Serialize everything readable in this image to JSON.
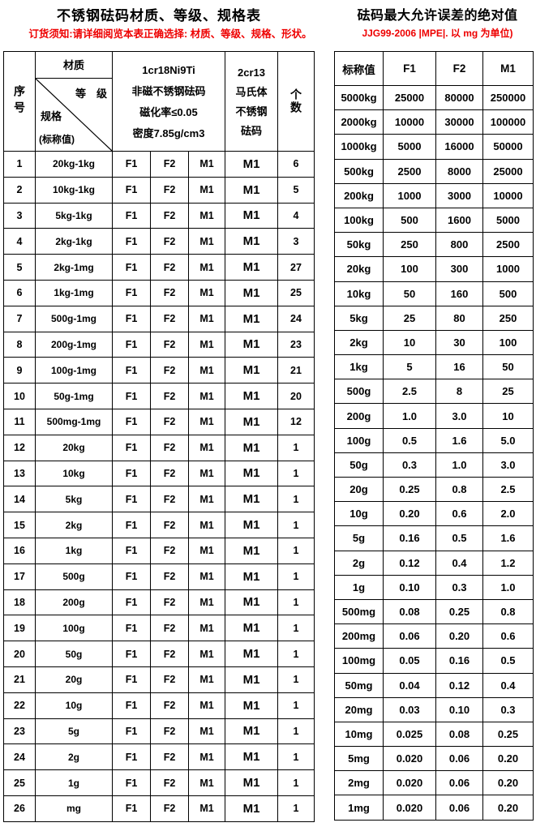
{
  "left": {
    "title": "不锈钢砝码材质、等级、规格表",
    "notice": "订货须知:请详细阅览本表正确选择: 材质、等级、规格、形状。",
    "header": {
      "seq_label": "序号",
      "material_label": "材质",
      "grade_label": "等　级",
      "spec_label": "规格",
      "nominal_label": "(标称值)",
      "material1_line1": "1cr18Ni9Ti",
      "material1_line2": "非磁不锈钢砝码",
      "material1_line3": "磁化率≤0.05",
      "material1_line4": "密度7.85g/cm3",
      "material2_line1": "2cr13",
      "material2_line2": "马氏体",
      "material2_line3": "不锈钢",
      "material2_line4": "砝码",
      "count_label": "个数"
    },
    "rows": [
      [
        "1",
        "20kg-1kg",
        "F1",
        "F2",
        "M1",
        "M1",
        "6"
      ],
      [
        "2",
        "10kg-1kg",
        "F1",
        "F2",
        "M1",
        "M1",
        "5"
      ],
      [
        "3",
        "5kg-1kg",
        "F1",
        "F2",
        "M1",
        "M1",
        "4"
      ],
      [
        "4",
        "2kg-1kg",
        "F1",
        "F2",
        "M1",
        "M1",
        "3"
      ],
      [
        "5",
        "2kg-1mg",
        "F1",
        "F2",
        "M1",
        "M1",
        "27"
      ],
      [
        "6",
        "1kg-1mg",
        "F1",
        "F2",
        "M1",
        "M1",
        "25"
      ],
      [
        "7",
        "500g-1mg",
        "F1",
        "F2",
        "M1",
        "M1",
        "24"
      ],
      [
        "8",
        "200g-1mg",
        "F1",
        "F2",
        "M1",
        "M1",
        "23"
      ],
      [
        "9",
        "100g-1mg",
        "F1",
        "F2",
        "M1",
        "M1",
        "21"
      ],
      [
        "10",
        "50g-1mg",
        "F1",
        "F2",
        "M1",
        "M1",
        "20"
      ],
      [
        "11",
        "500mg-1mg",
        "F1",
        "F2",
        "M1",
        "M1",
        "12"
      ],
      [
        "12",
        "20kg",
        "F1",
        "F2",
        "M1",
        "M1",
        "1"
      ],
      [
        "13",
        "10kg",
        "F1",
        "F2",
        "M1",
        "M1",
        "1"
      ],
      [
        "14",
        "5kg",
        "F1",
        "F2",
        "M1",
        "M1",
        "1"
      ],
      [
        "15",
        "2kg",
        "F1",
        "F2",
        "M1",
        "M1",
        "1"
      ],
      [
        "16",
        "1kg",
        "F1",
        "F2",
        "M1",
        "M1",
        "1"
      ],
      [
        "17",
        "500g",
        "F1",
        "F2",
        "M1",
        "M1",
        "1"
      ],
      [
        "18",
        "200g",
        "F1",
        "F2",
        "M1",
        "M1",
        "1"
      ],
      [
        "19",
        "100g",
        "F1",
        "F2",
        "M1",
        "M1",
        "1"
      ],
      [
        "20",
        "50g",
        "F1",
        "F2",
        "M1",
        "M1",
        "1"
      ],
      [
        "21",
        "20g",
        "F1",
        "F2",
        "M1",
        "M1",
        "1"
      ],
      [
        "22",
        "10g",
        "F1",
        "F2",
        "M1",
        "M1",
        "1"
      ],
      [
        "23",
        "5g",
        "F1",
        "F2",
        "M1",
        "M1",
        "1"
      ],
      [
        "24",
        "2g",
        "F1",
        "F2",
        "M1",
        "M1",
        "1"
      ],
      [
        "25",
        "1g",
        "F1",
        "F2",
        "M1",
        "M1",
        "1"
      ],
      [
        "26",
        "mg",
        "F1",
        "F2",
        "M1",
        "M1",
        "1"
      ]
    ]
  },
  "right": {
    "title": "砝码最大允许误差的绝对值",
    "notice": "JJG99-2006 |MPE|. 以 mg 为单位)",
    "columns": [
      "标称值",
      "F1",
      "F2",
      "M1"
    ],
    "rows": [
      [
        "5000kg",
        "25000",
        "80000",
        "250000"
      ],
      [
        "2000kg",
        "10000",
        "30000",
        "100000"
      ],
      [
        "1000kg",
        "5000",
        "16000",
        "50000"
      ],
      [
        "500kg",
        "2500",
        "8000",
        "25000"
      ],
      [
        "200kg",
        "1000",
        "3000",
        "10000"
      ],
      [
        "100kg",
        "500",
        "1600",
        "5000"
      ],
      [
        "50kg",
        "250",
        "800",
        "2500"
      ],
      [
        "20kg",
        "100",
        "300",
        "1000"
      ],
      [
        "10kg",
        "50",
        "160",
        "500"
      ],
      [
        "5kg",
        "25",
        "80",
        "250"
      ],
      [
        "2kg",
        "10",
        "30",
        "100"
      ],
      [
        "1kg",
        "5",
        "16",
        "50"
      ],
      [
        "500g",
        "2.5",
        "8",
        "25"
      ],
      [
        "200g",
        "1.0",
        "3.0",
        "10"
      ],
      [
        "100g",
        "0.5",
        "1.6",
        "5.0"
      ],
      [
        "50g",
        "0.3",
        "1.0",
        "3.0"
      ],
      [
        "20g",
        "0.25",
        "0.8",
        "2.5"
      ],
      [
        "10g",
        "0.20",
        "0.6",
        "2.0"
      ],
      [
        "5g",
        "0.16",
        "0.5",
        "1.6"
      ],
      [
        "2g",
        "0.12",
        "0.4",
        "1.2"
      ],
      [
        "1g",
        "0.10",
        "0.3",
        "1.0"
      ],
      [
        "500mg",
        "0.08",
        "0.25",
        "0.8"
      ],
      [
        "200mg",
        "0.06",
        "0.20",
        "0.6"
      ],
      [
        "100mg",
        "0.05",
        "0.16",
        "0.5"
      ],
      [
        "50mg",
        "0.04",
        "0.12",
        "0.4"
      ],
      [
        "20mg",
        "0.03",
        "0.10",
        "0.3"
      ],
      [
        "10mg",
        "0.025",
        "0.08",
        "0.25"
      ],
      [
        "5mg",
        "0.020",
        "0.06",
        "0.20"
      ],
      [
        "2mg",
        "0.020",
        "0.06",
        "0.20"
      ],
      [
        "1mg",
        "0.020",
        "0.06",
        "0.20"
      ]
    ]
  }
}
